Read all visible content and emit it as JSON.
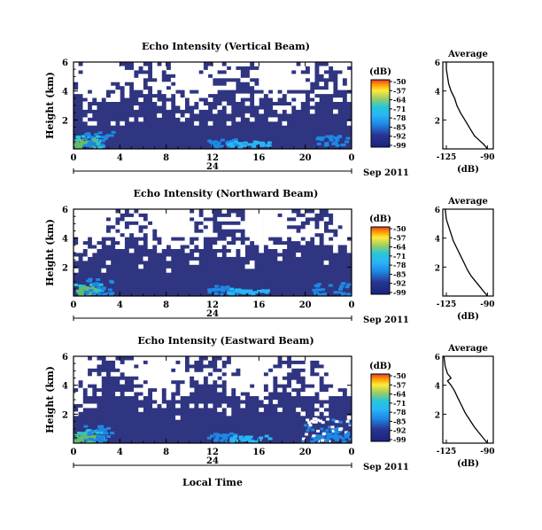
{
  "chart_data": [
    {
      "type": "heatmap",
      "title": "Echo Intensity (Vertical Beam)",
      "ylabel": "Height (km)",
      "x_ticks": [
        "0",
        "4",
        "8",
        "12",
        "16",
        "20",
        "0"
      ],
      "y_ticks": [
        "6",
        "4",
        "2"
      ],
      "date_mark": "24",
      "date_label": "Sep 2011",
      "xlim": [
        0,
        24
      ],
      "ylim": [
        0,
        6
      ],
      "colorbar": {
        "unit": "(dB)",
        "ticks": [
          "-50",
          "-57",
          "-64",
          "-71",
          "-78",
          "-85",
          "-92",
          "-99"
        ]
      },
      "profile": {
        "title": "Average",
        "xlabel": "(dB)",
        "x_ticks": [
          "-125",
          "-90"
        ],
        "y_ticks": [
          "6",
          "4",
          "2"
        ],
        "xlim": [
          -128,
          -85
        ],
        "points": [
          [
            -90,
            0.0
          ],
          [
            -93,
            0.3
          ],
          [
            -97,
            0.6
          ],
          [
            -101,
            0.9
          ],
          [
            -104,
            1.3
          ],
          [
            -107,
            1.7
          ],
          [
            -110,
            2.1
          ],
          [
            -113,
            2.5
          ],
          [
            -116,
            3.0
          ],
          [
            -118,
            3.5
          ],
          [
            -121,
            4.0
          ],
          [
            -123,
            4.5
          ],
          [
            -124,
            5.0
          ],
          [
            -125,
            5.5
          ],
          [
            -125,
            6.0
          ]
        ]
      }
    },
    {
      "type": "heatmap",
      "title": "Echo Intensity (Northward Beam)",
      "ylabel": "Height (km)",
      "x_ticks": [
        "0",
        "4",
        "8",
        "12",
        "16",
        "20",
        "0"
      ],
      "y_ticks": [
        "6",
        "4",
        "2"
      ],
      "date_mark": "24",
      "date_label": "Sep 2011",
      "xlim": [
        0,
        24
      ],
      "ylim": [
        0,
        6
      ],
      "colorbar": {
        "unit": "(dB)",
        "ticks": [
          "-50",
          "-57",
          "-64",
          "-71",
          "-78",
          "-85",
          "-92",
          "-99"
        ]
      },
      "profile": {
        "title": "Average",
        "xlabel": "(dB)",
        "x_ticks": [
          "-125",
          "-90"
        ],
        "y_ticks": [
          "6",
          "4",
          "2"
        ],
        "xlim": [
          -128,
          -85
        ],
        "points": [
          [
            -90,
            0.0
          ],
          [
            -93,
            0.3
          ],
          [
            -96,
            0.6
          ],
          [
            -100,
            1.0
          ],
          [
            -104,
            1.4
          ],
          [
            -107,
            1.8
          ],
          [
            -110,
            2.3
          ],
          [
            -113,
            2.8
          ],
          [
            -116,
            3.3
          ],
          [
            -119,
            3.8
          ],
          [
            -121,
            4.3
          ],
          [
            -123,
            4.8
          ],
          [
            -125,
            5.3
          ],
          [
            -126,
            6.0
          ]
        ]
      }
    },
    {
      "type": "heatmap",
      "title": "Echo Intensity (Eastward Beam)",
      "ylabel": "Height (km)",
      "xlabel": "Local Time",
      "x_ticks": [
        "0",
        "4",
        "8",
        "12",
        "16",
        "20",
        "0"
      ],
      "y_ticks": [
        "6",
        "4",
        "2"
      ],
      "date_mark": "24",
      "date_label": "Sep 2011",
      "xlim": [
        0,
        24
      ],
      "ylim": [
        0,
        6
      ],
      "colorbar": {
        "unit": "(dB)",
        "ticks": [
          "-50",
          "-57",
          "-64",
          "-71",
          "-78",
          "-85",
          "-92",
          "-99"
        ]
      },
      "profile": {
        "title": "Average",
        "xlabel": "(dB)",
        "x_ticks": [
          "-125",
          "-90"
        ],
        "y_ticks": [
          "6",
          "4",
          "2"
        ],
        "xlim": [
          -128,
          -85
        ],
        "points": [
          [
            -90,
            0.0
          ],
          [
            -93,
            0.3
          ],
          [
            -97,
            0.7
          ],
          [
            -101,
            1.1
          ],
          [
            -105,
            1.6
          ],
          [
            -109,
            2.1
          ],
          [
            -112,
            2.6
          ],
          [
            -115,
            3.1
          ],
          [
            -118,
            3.6
          ],
          [
            -121,
            4.0
          ],
          [
            -124,
            4.3
          ],
          [
            -121,
            4.5
          ],
          [
            -124,
            4.8
          ],
          [
            -126,
            5.3
          ],
          [
            -127,
            6.0
          ]
        ]
      }
    }
  ],
  "colors": {
    "background_echo": "#2f3580",
    "colormap": [
      "#1a237e",
      "#303f9f",
      "#1e88e5",
      "#29b6f6",
      "#26c6da",
      "#66bb6a",
      "#ffeb3b",
      "#ff9800",
      "#e53935"
    ]
  }
}
